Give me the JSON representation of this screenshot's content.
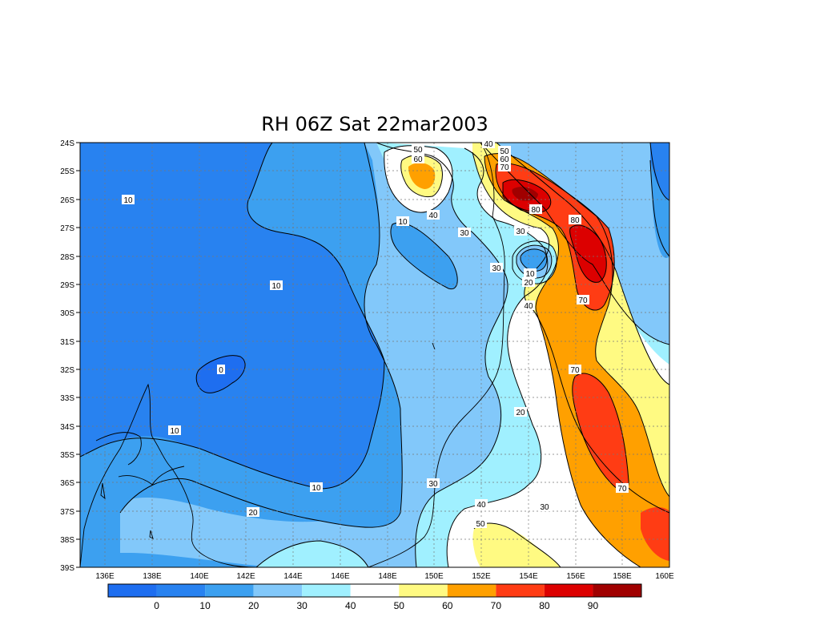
{
  "title": "RH 06Z Sat 22mar2003",
  "map": {
    "lat_labels": [
      "24S",
      "25S",
      "26S",
      "27S",
      "28S",
      "29S",
      "30S",
      "31S",
      "32S",
      "33S",
      "34S",
      "35S",
      "36S",
      "37S",
      "38S",
      "39S"
    ],
    "lon_labels": [
      "136E",
      "138E",
      "140E",
      "142E",
      "144E",
      "146E",
      "148E",
      "150E",
      "152E",
      "154E",
      "156E",
      "158E",
      "160E"
    ],
    "contour_labels": [
      {
        "text": "10"
      },
      {
        "text": "10"
      },
      {
        "text": "10"
      },
      {
        "text": "10"
      },
      {
        "text": "10"
      },
      {
        "text": "10"
      },
      {
        "text": "0"
      },
      {
        "text": "20"
      },
      {
        "text": "20"
      },
      {
        "text": "20"
      },
      {
        "text": "30"
      },
      {
        "text": "30"
      },
      {
        "text": "30"
      },
      {
        "text": "30"
      },
      {
        "text": "30"
      },
      {
        "text": "40"
      },
      {
        "text": "40"
      },
      {
        "text": "40"
      },
      {
        "text": "50"
      },
      {
        "text": "50"
      },
      {
        "text": "50"
      },
      {
        "text": "60"
      },
      {
        "text": "60"
      },
      {
        "text": "70"
      },
      {
        "text": "70"
      },
      {
        "text": "70"
      },
      {
        "text": "70"
      },
      {
        "text": "80"
      },
      {
        "text": "80"
      },
      {
        "text": "40"
      }
    ]
  },
  "colorbar": {
    "labels": [
      "0",
      "10",
      "20",
      "30",
      "40",
      "50",
      "60",
      "70",
      "80",
      "90"
    ],
    "colors": [
      "#1e6ef0",
      "#2882f0",
      "#3ca0f0",
      "#82c8fa",
      "#a0f0ff",
      "#ffffff",
      "#fffa82",
      "#ffa000",
      "#ff3c14",
      "#dc0000",
      "#a00000"
    ]
  }
}
